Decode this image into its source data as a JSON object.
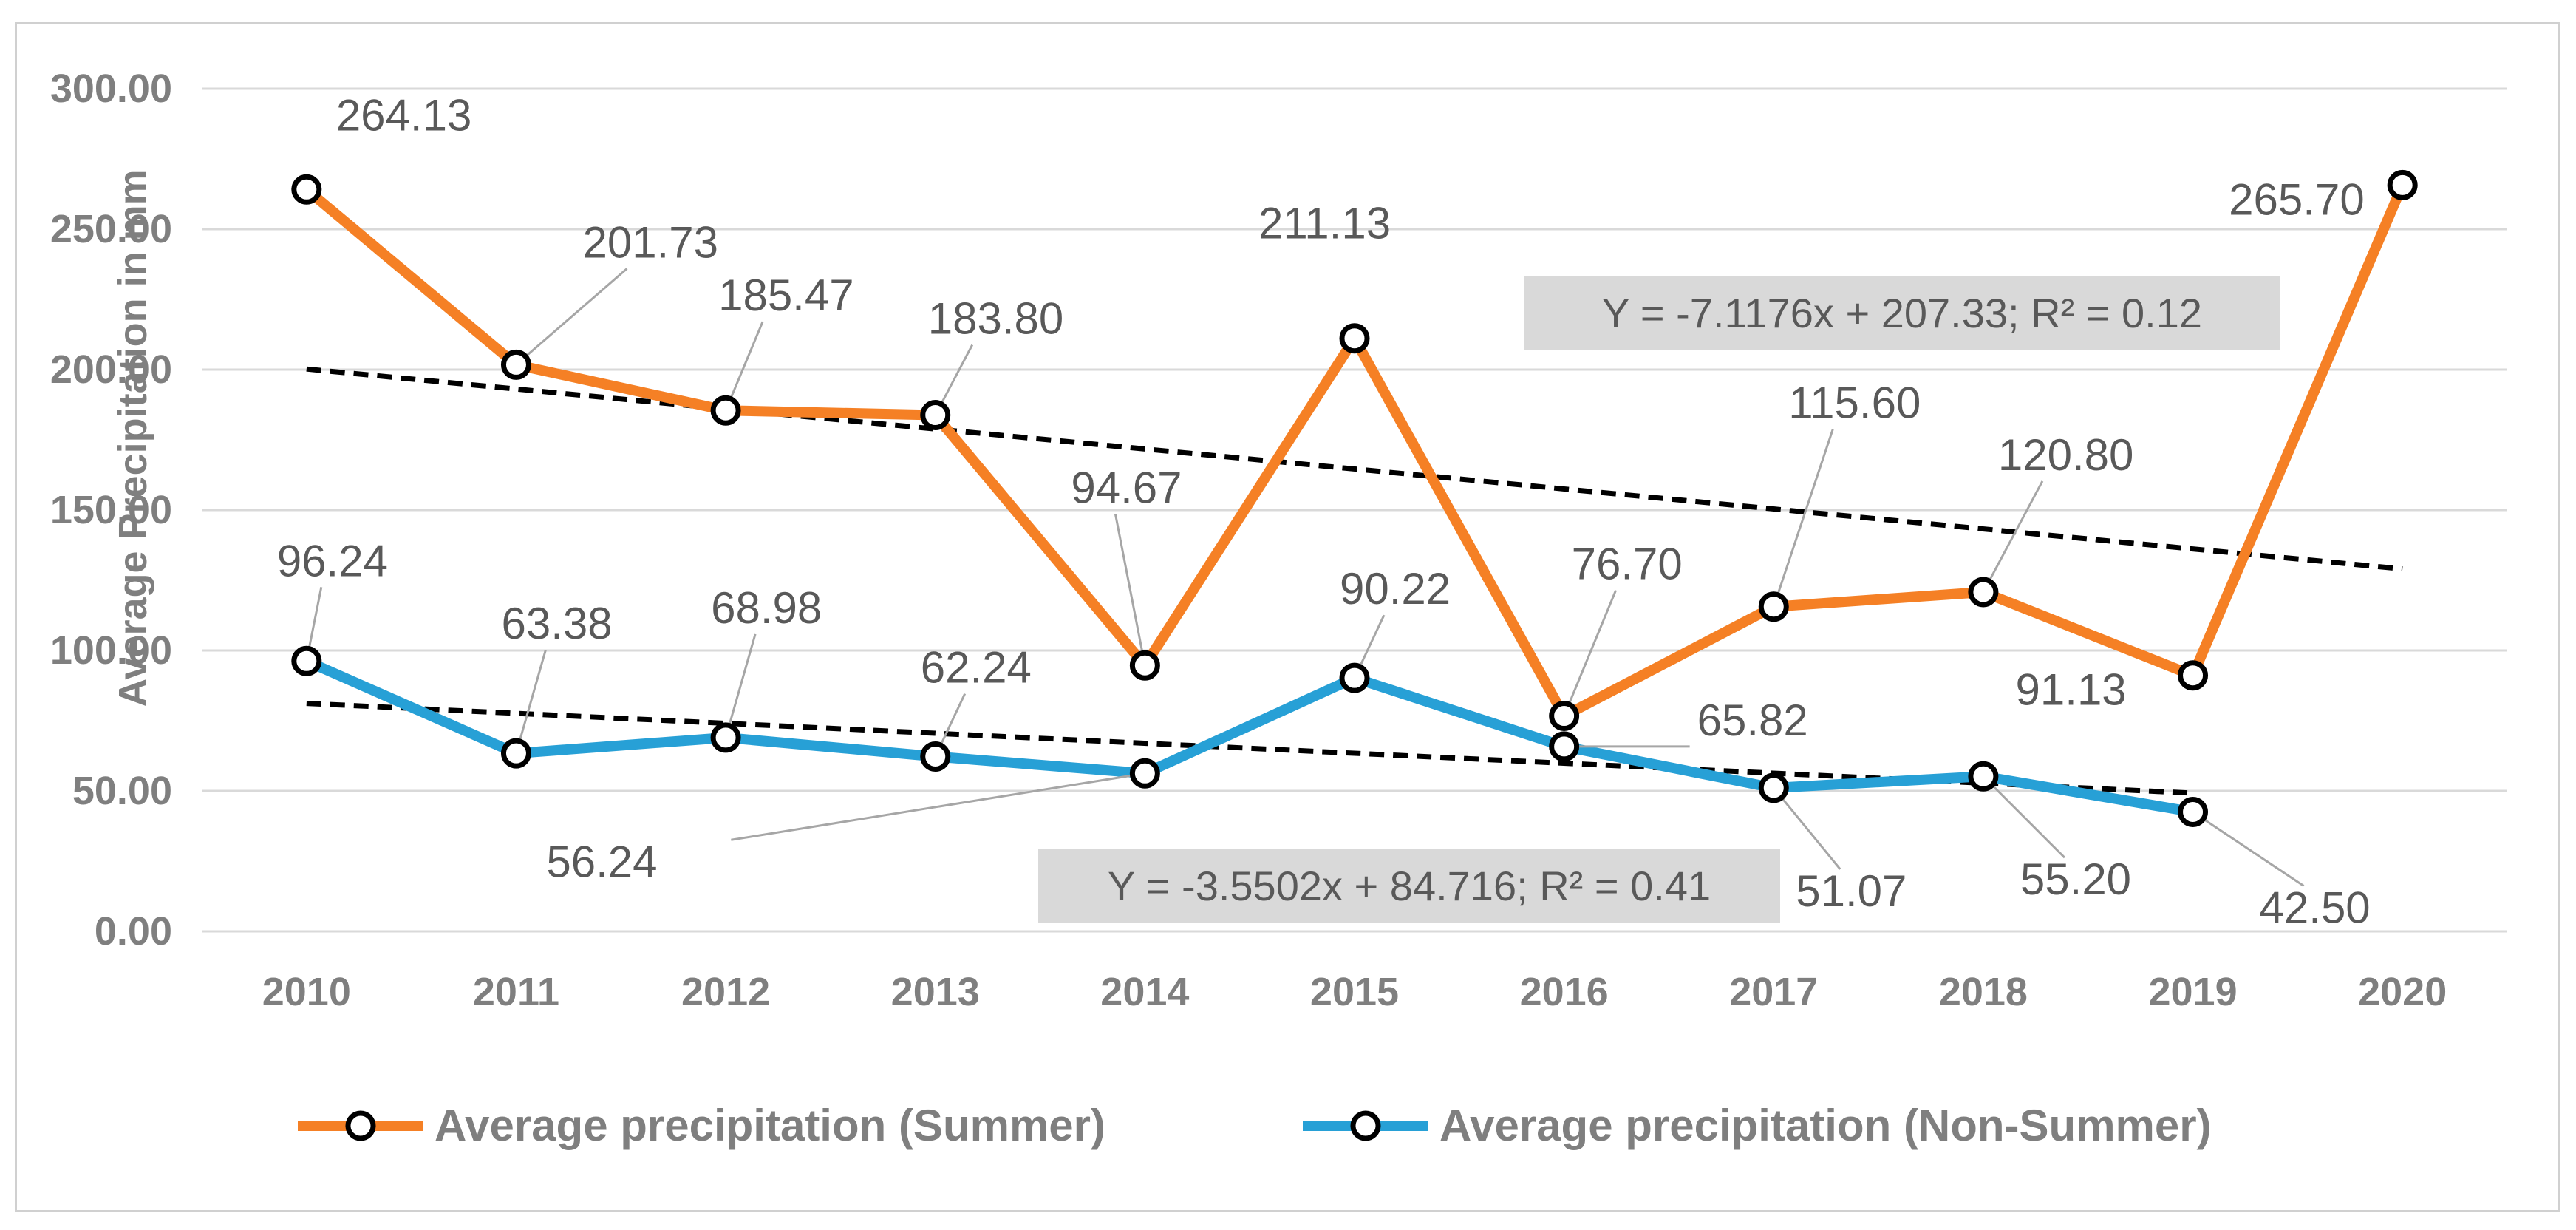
{
  "chart_data": {
    "type": "line",
    "title": "",
    "xlabel": "",
    "ylabel": "Average Precipitation in mm",
    "ylim": [
      0,
      300
    ],
    "ytick_step": 50,
    "ytick_labels": [
      "0.00",
      "50.00",
      "100.00",
      "150.00",
      "200.00",
      "250.00",
      "300.00"
    ],
    "categories": [
      "2010",
      "2011",
      "2012",
      "2013",
      "2014",
      "2015",
      "2016",
      "2017",
      "2018",
      "2019",
      "2020"
    ],
    "grid": true,
    "legend_position": "bottom",
    "series": [
      {
        "name": "Average precipitation (Summer)",
        "color": "#f58025",
        "values": [
          264.13,
          201.73,
          185.47,
          183.8,
          94.67,
          211.13,
          76.7,
          115.6,
          120.8,
          91.13,
          265.7
        ],
        "labels": [
          "264.13",
          "201.73",
          "185.47",
          "183.80",
          "94.67",
          "211.13",
          "76.70",
          "115.60",
          "120.80",
          "91.13",
          "265.70"
        ],
        "trendline": {
          "slope": -7.1176,
          "intercept": 207.33,
          "r2": 0.12,
          "equation_label": "Y = -7.1176x + 207.33; R² = 0.12",
          "x_range": [
            2010,
            2020
          ]
        }
      },
      {
        "name": "Average precipitation (Non-Summer)",
        "color": "#27a0d6",
        "values": [
          96.24,
          63.38,
          68.98,
          62.24,
          56.24,
          90.22,
          65.82,
          51.07,
          55.2,
          42.5,
          null
        ],
        "labels": [
          "96.24",
          "63.38",
          "68.98",
          "62.24",
          "56.24",
          "90.22",
          "65.82",
          "51.07",
          "55.20",
          "42.50",
          null
        ],
        "trendline": {
          "slope": -3.5502,
          "intercept": 84.716,
          "r2": 0.41,
          "equation_label": "Y = -3.5502x + 84.716; R² = 0.41",
          "x_range": [
            2010,
            2019
          ]
        }
      }
    ],
    "colors": {
      "grid": "#d9d9d9",
      "axis_text": "#7f7f7f",
      "label_text": "#595959",
      "leader": "#a6a6a6",
      "marker_stroke": "#000000",
      "trend": "#000000",
      "eq_box": "#d9d9d9"
    }
  }
}
